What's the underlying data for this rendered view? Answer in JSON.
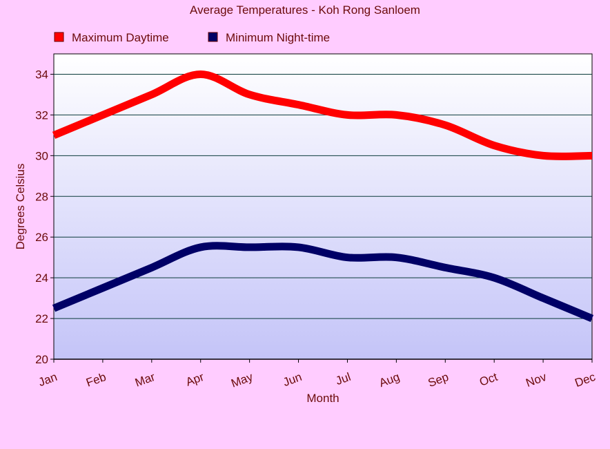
{
  "chart_data": {
    "type": "line",
    "title": "Average Temperatures - Koh Rong Sanloem",
    "xlabel": "Month",
    "ylabel": "Degrees Celsius",
    "categories": [
      "Jan",
      "Feb",
      "Mar",
      "Apr",
      "May",
      "Jun",
      "Jul",
      "Aug",
      "Sep",
      "Oct",
      "Nov",
      "Dec"
    ],
    "ylim": [
      20,
      35
    ],
    "yticks": [
      20,
      22,
      24,
      26,
      28,
      30,
      32,
      34
    ],
    "grid": true,
    "legend_position": "top-left",
    "smooth": true,
    "series": [
      {
        "name": "Maximum Daytime",
        "color": "#ff0000",
        "values": [
          31,
          32,
          33,
          34,
          33,
          32.5,
          32,
          32,
          31.5,
          30.5,
          30,
          30
        ]
      },
      {
        "name": "Minimum Night-time",
        "color": "#000066",
        "values": [
          22.5,
          23.5,
          24.5,
          25.5,
          25.5,
          25.5,
          25,
          25,
          24.5,
          24,
          23,
          22
        ]
      }
    ]
  },
  "colors": {
    "background": "#ffccff",
    "text": "#6b0a0a",
    "plot_top": "#ffffff",
    "plot_bottom": "#c4c4f8",
    "grid": "#0a3a3a"
  }
}
